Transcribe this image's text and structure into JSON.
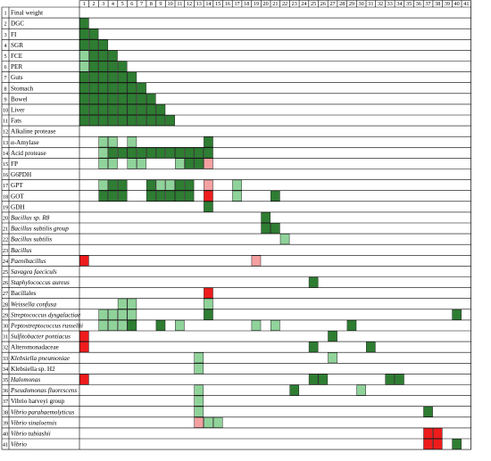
{
  "chart_data": {
    "type": "heatmap",
    "rows": [
      {
        "id": 1,
        "label": "Final weight",
        "italic": false
      },
      {
        "id": 2,
        "label": "DGC",
        "italic": false
      },
      {
        "id": 3,
        "label": "FI",
        "italic": false
      },
      {
        "id": 4,
        "label": "SGR",
        "italic": false
      },
      {
        "id": 5,
        "label": "FCE",
        "italic": false
      },
      {
        "id": 6,
        "label": "PER",
        "italic": false
      },
      {
        "id": 7,
        "label": "Guts",
        "italic": false
      },
      {
        "id": 8,
        "label": "Stomach",
        "italic": false
      },
      {
        "id": 9,
        "label": "Bowel",
        "italic": false
      },
      {
        "id": 10,
        "label": "Liver",
        "italic": false
      },
      {
        "id": 11,
        "label": "Fats",
        "italic": false
      },
      {
        "id": 12,
        "label": "Alkaline protease",
        "italic": false
      },
      {
        "id": 13,
        "label": "α-Amylase",
        "italic": false
      },
      {
        "id": 14,
        "label": "Acid protease",
        "italic": false
      },
      {
        "id": 15,
        "label": "FP",
        "italic": false
      },
      {
        "id": 16,
        "label": "G6PDH",
        "italic": false
      },
      {
        "id": 17,
        "label": "GPT",
        "italic": false
      },
      {
        "id": 18,
        "label": "GOT",
        "italic": false
      },
      {
        "id": 19,
        "label": "GDH",
        "italic": false
      },
      {
        "id": 20,
        "label": "Bacillus sp. R8",
        "italic": true
      },
      {
        "id": 21,
        "label": "Bacillus subtilis group",
        "italic": true
      },
      {
        "id": 22,
        "label": "Bacillus subtilis",
        "italic": true
      },
      {
        "id": 23,
        "label": "Bacillus",
        "italic": true
      },
      {
        "id": 24,
        "label": "Paenibacillus",
        "italic": true
      },
      {
        "id": 25,
        "label": "Savagea faeciculs",
        "italic": true
      },
      {
        "id": 26,
        "label": "Staphylococcus aureus",
        "italic": true
      },
      {
        "id": 27,
        "label": "Bacillales",
        "italic": false
      },
      {
        "id": 28,
        "label": "Weissella confusa",
        "italic": true
      },
      {
        "id": 29,
        "label": "Streptococcus dysgalactiae",
        "italic": true
      },
      {
        "id": 30,
        "label": "Peptostreptococcus russellii",
        "italic": true
      },
      {
        "id": 31,
        "label": "Sulfitobacter pontiacus",
        "italic": true
      },
      {
        "id": 32,
        "label": "Alteromonadaceae",
        "italic": false
      },
      {
        "id": 33,
        "label": "Klebsiella pneumoniae",
        "italic": true
      },
      {
        "id": 34,
        "label": "Klebsiella sp. H2",
        "italic": false
      },
      {
        "id": 35,
        "label": "Halomonas",
        "italic": true
      },
      {
        "id": 36,
        "label": "Pseudomonas fluorescens",
        "italic": true
      },
      {
        "id": 37,
        "label": "Vibrio harveyi group",
        "italic": false
      },
      {
        "id": 38,
        "label": "Vibrio parahaemolyticus",
        "italic": true
      },
      {
        "id": 39,
        "label": "Vibrio sinaloensis",
        "italic": true
      },
      {
        "id": 40,
        "label": "Vibrio tubiashii",
        "italic": true
      },
      {
        "id": 41,
        "label": "Vibrio",
        "italic": true
      }
    ],
    "columns": [
      1,
      2,
      3,
      4,
      5,
      6,
      7,
      8,
      9,
      10,
      11,
      12,
      13,
      14,
      15,
      16,
      17,
      18,
      19,
      20,
      21,
      22,
      23,
      24,
      25,
      26,
      27,
      28,
      29,
      30,
      31,
      32,
      33,
      34,
      35,
      36,
      37,
      38,
      39,
      40,
      41
    ],
    "color_scale": {
      "D": "#2e7d32",
      "L": "#90d39a",
      "R": "#ee1c1c",
      "P": "#f4a0a0"
    },
    "cells": [
      {
        "row": 2,
        "cells": "D"
      },
      {
        "row": 3,
        "cells": "DD"
      },
      {
        "row": 4,
        "cells": "DDD"
      },
      {
        "row": 5,
        "cells": "LDDD"
      },
      {
        "row": 6,
        "cells": "LDDDD"
      },
      {
        "row": 7,
        "cells": "DDDDDD"
      },
      {
        "row": 8,
        "cells": "DDDDDDD"
      },
      {
        "row": 9,
        "cells": "DDDDDDDD"
      },
      {
        "row": 10,
        "cells": "DDDDDDDDD"
      },
      {
        "row": 11,
        "cells": "DDDDDDDDDD"
      },
      {
        "row": 13,
        "cells": "..LL.L.......D"
      },
      {
        "row": 14,
        "cells": "..LDDDDDDDDDDD"
      },
      {
        "row": 15,
        "cells": "..LL.LL...LDDP"
      },
      {
        "row": 17,
        "cells": "..LDD..DLLDD.P..L"
      },
      {
        "row": 18,
        "cells": "..DDD..DDDDD.R..L...D"
      },
      {
        "row": 19,
        "cells": ".............D"
      },
      {
        "row": 20,
        "cells": "...................D"
      },
      {
        "row": 21,
        "cells": "...................DD"
      },
      {
        "row": 22,
        "cells": ".....................L"
      },
      {
        "row": 24,
        "cells": "R.................P"
      },
      {
        "row": 26,
        "cells": "........................D"
      },
      {
        "row": 27,
        "cells": ".............R"
      },
      {
        "row": 28,
        "cells": "....LL.......L"
      },
      {
        "row": 29,
        "cells": "..LLLL.......D.........................D"
      },
      {
        "row": 30,
        "cells": "..LLLD..D.L.......L.L.......D"
      },
      {
        "row": 31,
        "cells": "R.........................D"
      },
      {
        "row": 32,
        "cells": "R.......................D.....D"
      },
      {
        "row": 33,
        "cells": "............L.............L"
      },
      {
        "row": 34,
        "cells": "............L"
      },
      {
        "row": 35,
        "cells": "R.......................DD......DD"
      },
      {
        "row": 36,
        "cells": "............L.........D......L"
      },
      {
        "row": 37,
        "cells": "............L"
      },
      {
        "row": 38,
        "cells": "............L.......................D"
      },
      {
        "row": 39,
        "cells": "............PLL"
      },
      {
        "row": 40,
        "cells": "....................................RR"
      },
      {
        "row": 41,
        "cells": "....................................RR.D"
      }
    ]
  }
}
